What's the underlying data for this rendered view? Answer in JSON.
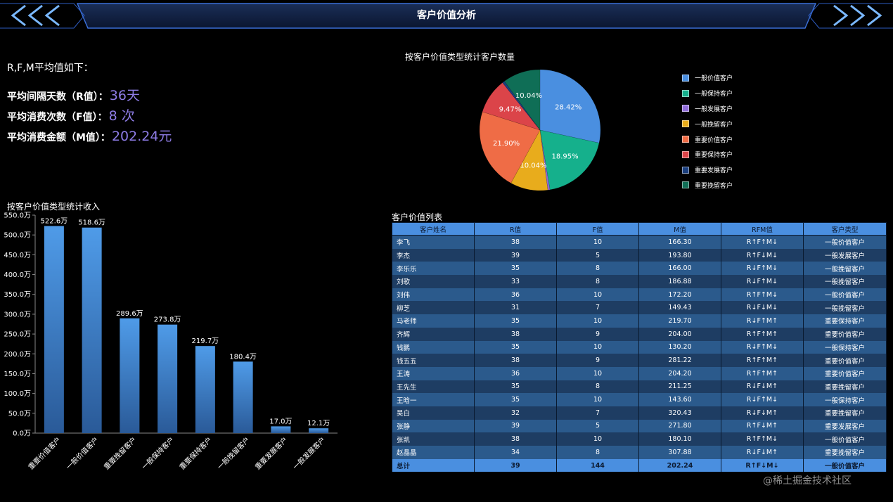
{
  "header": {
    "title": "客户价值分析"
  },
  "rfm": {
    "intro": "R,F,M平均值如下：",
    "rows": [
      {
        "label": "平均间隔天数（R值）：",
        "value": "36天"
      },
      {
        "label": "平均消费次数（F值）：",
        "value": "8 次"
      },
      {
        "label": "平均消费金额（M值）：",
        "value": "202.24元"
      }
    ]
  },
  "pie": {
    "title": "按客户价值类型统计客户数量",
    "legend": [
      "一般价值客户",
      "一般保持客户",
      "一般发展客户",
      "一般挽留客户",
      "重要价值客户",
      "重要保持客户",
      "重要发展客户",
      "重要挽留客户"
    ]
  },
  "bar": {
    "title": "按客户价值类型统计收入"
  },
  "table": {
    "title": "客户价值列表",
    "headers": [
      "客户姓名",
      "R值",
      "F值",
      "M值",
      "RFM值",
      "客户类型"
    ],
    "rows": [
      [
        "李飞",
        "38",
        "10",
        "166.30",
        "R↑F↑M↓",
        "一般价值客户"
      ],
      [
        "李杰",
        "39",
        "5",
        "193.80",
        "R↑F↓M↓",
        "一般发展客户"
      ],
      [
        "李乐乐",
        "35",
        "8",
        "166.00",
        "R↓F↑M↓",
        "一般挽留客户"
      ],
      [
        "刘歌",
        "33",
        "8",
        "186.88",
        "R↓F↑M↓",
        "一般挽留客户"
      ],
      [
        "刘伟",
        "36",
        "10",
        "172.20",
        "R↑F↑M↓",
        "一般价值客户"
      ],
      [
        "柳芝",
        "31",
        "7",
        "149.43",
        "R↓F↓M↓",
        "一般挽留客户"
      ],
      [
        "马老师",
        "35",
        "10",
        "219.70",
        "R↓F↑M↑",
        "重要保持客户"
      ],
      [
        "齐辉",
        "38",
        "9",
        "204.00",
        "R↑F↑M↑",
        "重要价值客户"
      ],
      [
        "钱鹏",
        "35",
        "10",
        "130.20",
        "R↓F↑M↓",
        "一般保持客户"
      ],
      [
        "钱五五",
        "38",
        "9",
        "281.22",
        "R↑F↑M↑",
        "重要价值客户"
      ],
      [
        "王涛",
        "36",
        "10",
        "204.20",
        "R↑F↑M↑",
        "重要价值客户"
      ],
      [
        "王先生",
        "35",
        "8",
        "211.25",
        "R↓F↓M↑",
        "重要挽留客户"
      ],
      [
        "王晗一",
        "35",
        "10",
        "143.60",
        "R↓F↑M↓",
        "一般保持客户"
      ],
      [
        "吴白",
        "32",
        "7",
        "320.43",
        "R↓F↓M↑",
        "重要挽留客户"
      ],
      [
        "张静",
        "39",
        "5",
        "271.80",
        "R↑F↓M↑",
        "重要发展客户"
      ],
      [
        "张凯",
        "38",
        "10",
        "180.10",
        "R↑F↑M↓",
        "一般价值客户"
      ],
      [
        "赵晶晶",
        "34",
        "8",
        "307.88",
        "R↓F↓M↑",
        "重要挽留客户"
      ]
    ],
    "total": [
      "总计",
      "39",
      "144",
      "202.24",
      "R↑F↓M↓",
      "一般价值客户"
    ]
  },
  "watermark": "@稀土掘金技术社区",
  "colors": {
    "background": "#000000",
    "accent": "#4a8fe0",
    "rfm_value": "#8e7ce6"
  },
  "chart_data": [
    {
      "type": "pie",
      "title": "按客户价值类型统计客户数量",
      "categories": [
        "一般价值客户",
        "一般保持客户",
        "一般发展客户",
        "一般挽留客户",
        "重要价值客户",
        "重要保持客户",
        "重要发展客户",
        "重要挽留客户"
      ],
      "values": [
        28.42,
        18.95,
        0.57,
        10.04,
        21.9,
        9.47,
        0.61,
        10.04
      ],
      "colors": [
        "#4a8fe0",
        "#15b08c",
        "#8f6bd8",
        "#e8ac1c",
        "#ef6c46",
        "#db4449",
        "#1b3f7e",
        "#0f6e56"
      ],
      "labels": [
        "28.42%",
        "18.95%",
        "",
        "10.04%",
        "21.90%",
        "9.47%",
        "",
        "10.04%"
      ],
      "legend_position": "right"
    },
    {
      "type": "bar",
      "title": "按客户价值类型统计收入",
      "categories": [
        "重要价值客户",
        "一般价值客户",
        "重要挽留客户",
        "一般保持客户",
        "重要保持客户",
        "一般挽留客户",
        "重要发展客户",
        "一般发展客户"
      ],
      "values": [
        522.6,
        518.6,
        289.6,
        273.8,
        219.7,
        180.4,
        17.0,
        12.1
      ],
      "labels": [
        "522.6万",
        "518.6万",
        "289.6万",
        "273.8万",
        "219.7万",
        "180.4万",
        "17.0万",
        "12.1万"
      ],
      "yticks": [
        "0.0万",
        "50.0万",
        "100.0万",
        "150.0万",
        "200.0万",
        "250.0万",
        "300.0万",
        "350.0万",
        "400.0万",
        "450.0万",
        "500.0万",
        "550.0万"
      ],
      "ylim": [
        0,
        550
      ]
    }
  ]
}
